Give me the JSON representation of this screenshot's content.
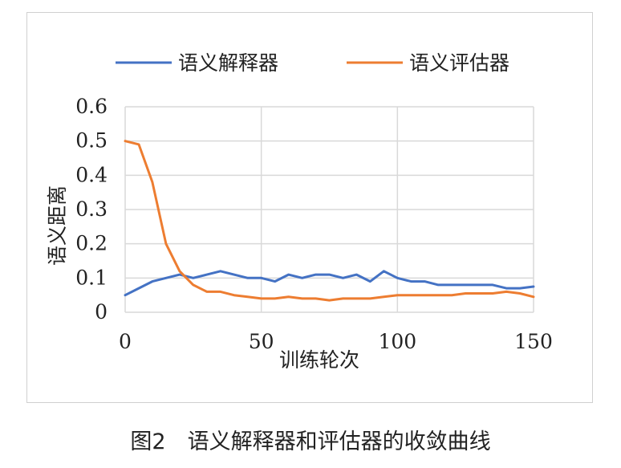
{
  "chart_data": {
    "type": "line",
    "title": "",
    "xlabel": "训练轮次",
    "ylabel": "语义距离",
    "xlim": [
      0,
      150
    ],
    "ylim": [
      0,
      0.6
    ],
    "xticks": [
      0,
      50,
      100,
      150
    ],
    "yticks": [
      0,
      0.1,
      0.2,
      0.3,
      0.4,
      0.5,
      0.6
    ],
    "xtick_labels": [
      "0",
      "50",
      "100",
      "150"
    ],
    "ytick_labels": [
      "0",
      "0.1",
      "0.2",
      "0.3",
      "0.4",
      "0.5",
      "0.6"
    ],
    "grid": true,
    "legend_position": "top",
    "x": [
      0,
      5,
      10,
      15,
      20,
      25,
      30,
      35,
      40,
      45,
      50,
      55,
      60,
      65,
      70,
      75,
      80,
      85,
      90,
      95,
      100,
      105,
      110,
      115,
      120,
      125,
      130,
      135,
      140,
      145,
      150
    ],
    "series": [
      {
        "name": "语义解释器",
        "color": "#4472C4",
        "values": [
          0.05,
          0.07,
          0.09,
          0.1,
          0.11,
          0.1,
          0.11,
          0.12,
          0.11,
          0.1,
          0.1,
          0.09,
          0.11,
          0.1,
          0.11,
          0.11,
          0.1,
          0.11,
          0.09,
          0.12,
          0.1,
          0.09,
          0.09,
          0.08,
          0.08,
          0.08,
          0.08,
          0.08,
          0.07,
          0.07,
          0.075
        ]
      },
      {
        "name": "语义评估器",
        "color": "#ED7D31",
        "values": [
          0.5,
          0.49,
          0.38,
          0.2,
          0.12,
          0.08,
          0.06,
          0.06,
          0.05,
          0.045,
          0.04,
          0.04,
          0.045,
          0.04,
          0.04,
          0.035,
          0.04,
          0.04,
          0.04,
          0.045,
          0.05,
          0.05,
          0.05,
          0.05,
          0.05,
          0.055,
          0.055,
          0.055,
          0.06,
          0.055,
          0.045
        ]
      }
    ]
  },
  "caption": "图2　语义解释器和评估器的收敛曲线"
}
